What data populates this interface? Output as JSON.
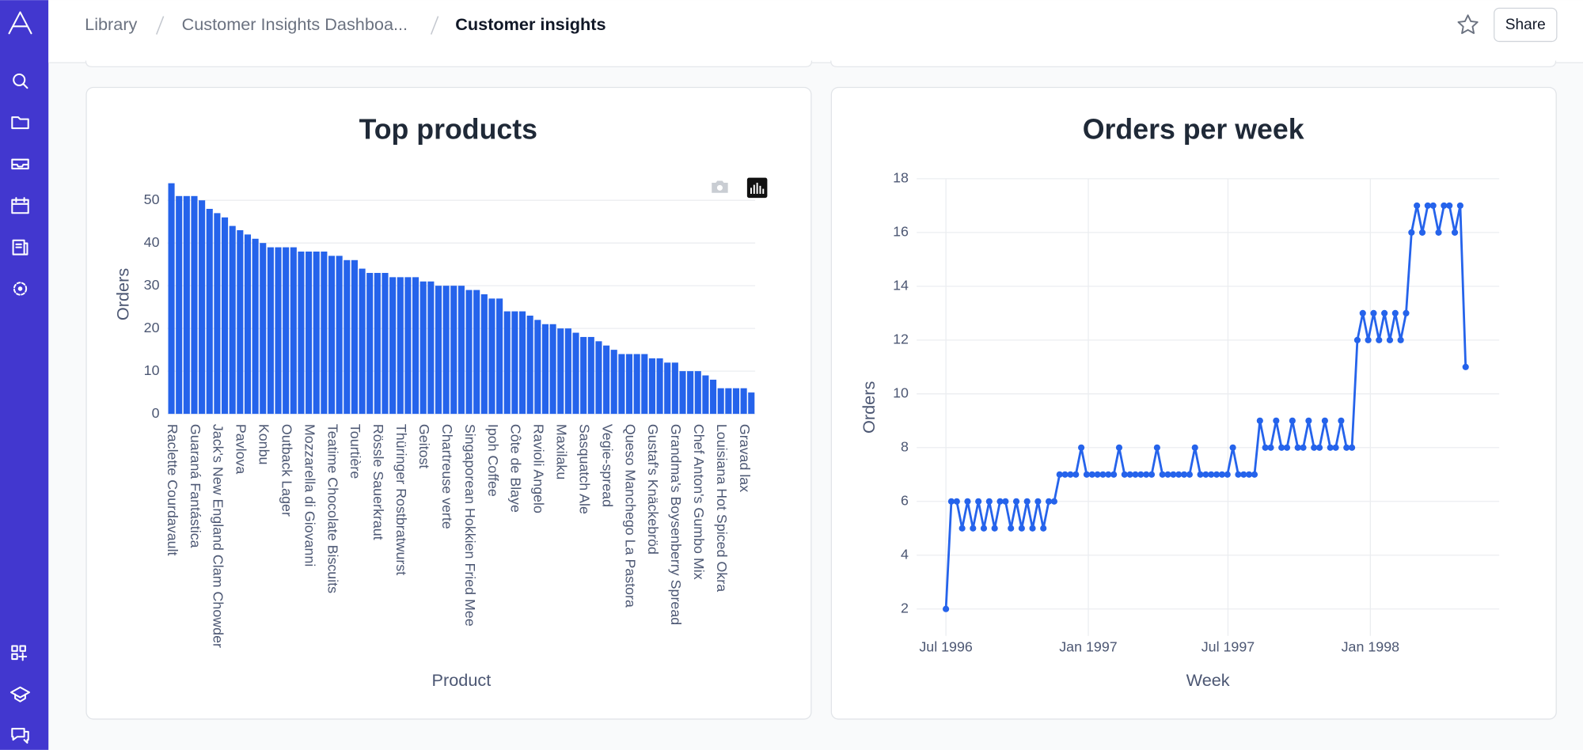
{
  "header": {
    "breadcrumbs": [
      "Library",
      "Customer Insights Dashboa...",
      "Customer insights"
    ],
    "share_button": "Share"
  },
  "chart_data": [
    {
      "type": "bar",
      "title": "Top products",
      "x_label": "Product",
      "y_label": "Orders",
      "color": "#2563eb",
      "grid": true,
      "categories": [
        "Raclette Courdavault",
        null,
        null,
        "Guaraná Fantástica",
        null,
        null,
        "Jack's New England Clam Chowder",
        null,
        null,
        "Pavlova",
        null,
        null,
        "Konbu",
        null,
        null,
        "Outback Lager",
        null,
        null,
        "Mozzarella di Giovanni",
        null,
        null,
        "Teatime Chocolate Biscuits",
        null,
        null,
        "Tourtière",
        null,
        null,
        "Rössle Sauerkraut",
        null,
        null,
        "Thüringer Rostbratwurst",
        null,
        null,
        "Geitost",
        null,
        null,
        "Chartreuse verte",
        null,
        null,
        "Singaporean Hokkien Fried Mee",
        null,
        null,
        "Ipoh Coffee",
        null,
        null,
        "Côte de Blaye",
        null,
        null,
        "Ravioli Angelo",
        null,
        null,
        "Maxilaku",
        null,
        null,
        "Sasquatch Ale",
        null,
        null,
        "Vegie-spread",
        null,
        null,
        "Queso Manchego La Pastora",
        null,
        null,
        "Gustaf's Knäckebröd",
        null,
        null,
        "Grandma's Boysenberry Spread",
        null,
        null,
        "Chef Anton's Gumbo Mix",
        null,
        null,
        "Louisiana Hot Spiced Okra",
        null,
        null,
        "Gravad lax",
        null
      ],
      "values": [
        54,
        51,
        51,
        51,
        50,
        48,
        47,
        46,
        44,
        43,
        42,
        41,
        40,
        39,
        39,
        39,
        39,
        38,
        38,
        38,
        38,
        37,
        37,
        36,
        36,
        34,
        33,
        33,
        33,
        32,
        32,
        32,
        32,
        31,
        31,
        30,
        30,
        30,
        30,
        29,
        29,
        28,
        27,
        27,
        24,
        24,
        24,
        23,
        22,
        21,
        21,
        20,
        20,
        19,
        18,
        18,
        17,
        16,
        15,
        14,
        14,
        14,
        14,
        13,
        13,
        12,
        12,
        10,
        10,
        10,
        9,
        8,
        6,
        6,
        6,
        6,
        5
      ],
      "ylim": [
        0,
        56
      ],
      "yticks": [
        0,
        10,
        20,
        30,
        40,
        50
      ]
    },
    {
      "type": "line",
      "title": "Orders per week",
      "x_label": "Week",
      "y_label": "Orders",
      "color": "#2563eb",
      "grid": true,
      "markers": true,
      "x": [
        0,
        1,
        2,
        3,
        4,
        5,
        6,
        7,
        8,
        9,
        10,
        11,
        12,
        13,
        14,
        15,
        16,
        17,
        18,
        19,
        20,
        21,
        22,
        23,
        24,
        25,
        26,
        27,
        28,
        29,
        30,
        31,
        32,
        33,
        34,
        35,
        36,
        37,
        38,
        39,
        40,
        41,
        42,
        43,
        44,
        45,
        46,
        47,
        48,
        49,
        50,
        51,
        52,
        53,
        54,
        55,
        56,
        57,
        58,
        59,
        60,
        61,
        62,
        63,
        64,
        65,
        66,
        67,
        68,
        69,
        70,
        71,
        72,
        73,
        74,
        75,
        76,
        77,
        78,
        79,
        80,
        81,
        82,
        83,
        84,
        85,
        86,
        87,
        88,
        89,
        90,
        91,
        92,
        93,
        94,
        95,
        96
      ],
      "values": [
        2,
        6,
        6,
        5,
        6,
        5,
        6,
        5,
        6,
        5,
        6,
        6,
        5,
        6,
        5,
        6,
        5,
        6,
        5,
        6,
        6,
        7,
        7,
        7,
        7,
        8,
        7,
        7,
        7,
        7,
        7,
        7,
        8,
        7,
        7,
        7,
        7,
        7,
        7,
        8,
        7,
        7,
        7,
        7,
        7,
        7,
        8,
        7,
        7,
        7,
        7,
        7,
        7,
        8,
        7,
        7,
        7,
        7,
        9,
        8,
        8,
        9,
        8,
        8,
        9,
        8,
        8,
        9,
        8,
        8,
        9,
        8,
        8,
        9,
        8,
        8,
        12,
        13,
        12,
        13,
        12,
        13,
        12,
        13,
        12,
        13,
        16,
        17,
        16,
        17,
        17,
        16,
        17,
        17,
        16,
        17,
        11
      ],
      "xlim": [
        -5.4,
        102.2
      ],
      "xticks": [
        {
          "value": 0,
          "label": "Jul 1996"
        },
        {
          "value": 26.3,
          "label": "Jan 1997"
        },
        {
          "value": 52.1,
          "label": "Jul 1997"
        },
        {
          "value": 78.4,
          "label": "Jan 1998"
        }
      ],
      "ylim": [
        1,
        18
      ],
      "yticks": [
        2,
        4,
        6,
        8,
        10,
        12,
        14,
        16,
        18
      ]
    }
  ]
}
